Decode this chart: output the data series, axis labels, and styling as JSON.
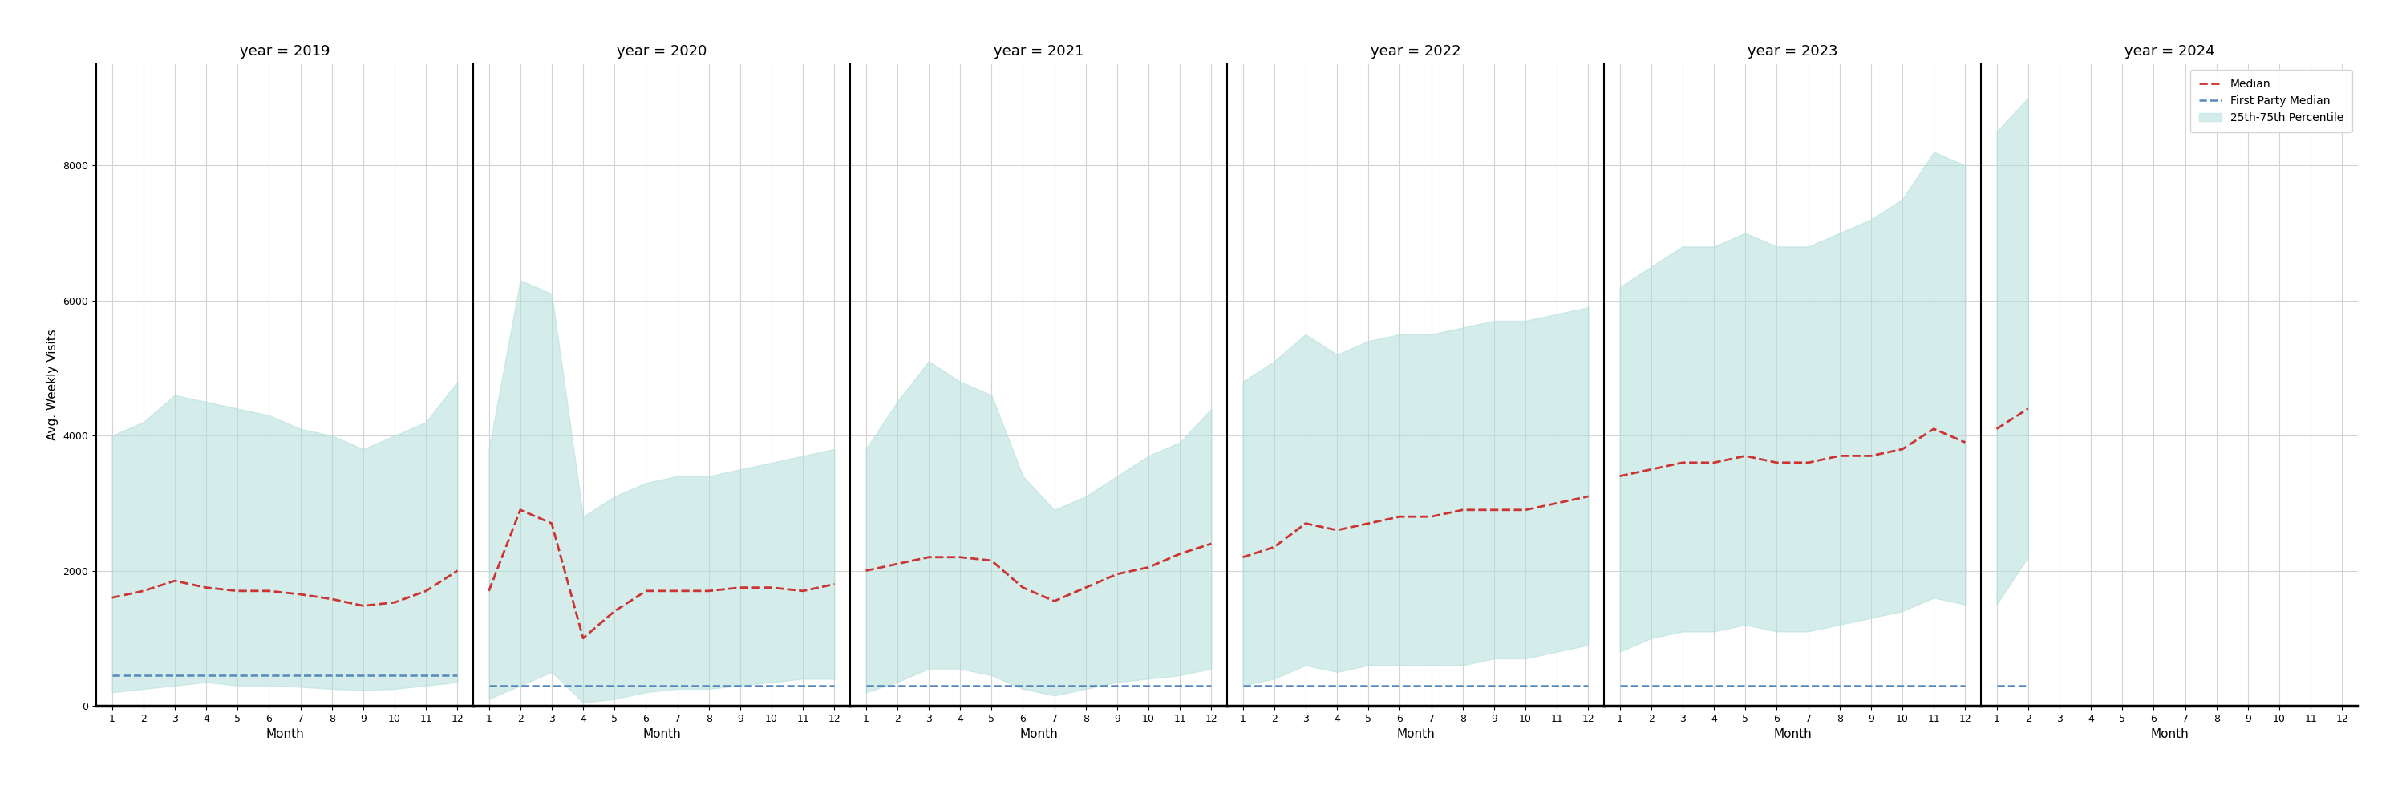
{
  "years": [
    2019,
    2020,
    2021,
    2022,
    2023,
    2024
  ],
  "ylabel": "Avg. Weekly Visits",
  "xlabel": "Month",
  "ylim": [
    0,
    9500
  ],
  "yticks": [
    0,
    2000,
    4000,
    6000,
    8000
  ],
  "median_color": "#cc3333",
  "fp_median_color": "#5588bb",
  "band_color": "#b2dfdb",
  "band_alpha": 0.55,
  "legend_labels": [
    "Median",
    "First Party Median",
    "25th-75th Percentile"
  ],
  "panel_widths": [
    12,
    12,
    12,
    12,
    12,
    12
  ],
  "data": {
    "2019": {
      "months": [
        1,
        2,
        3,
        4,
        5,
        6,
        7,
        8,
        9,
        10,
        11,
        12
      ],
      "median": [
        1600,
        1700,
        1850,
        1750,
        1700,
        1700,
        1650,
        1580,
        1480,
        1530,
        1700,
        2000
      ],
      "p25": [
        200,
        250,
        300,
        350,
        300,
        300,
        280,
        250,
        230,
        250,
        300,
        350
      ],
      "p75": [
        4000,
        4200,
        4600,
        4500,
        4400,
        4300,
        4100,
        4000,
        3800,
        4000,
        4200,
        4800
      ],
      "fp_median": [
        450,
        450,
        450,
        450,
        450,
        450,
        450,
        450,
        450,
        450,
        450,
        450
      ]
    },
    "2020": {
      "months": [
        1,
        2,
        3,
        4,
        5,
        6,
        7,
        8,
        9,
        10,
        11,
        12
      ],
      "median": [
        1700,
        2900,
        2700,
        1000,
        1400,
        1700,
        1700,
        1700,
        1750,
        1750,
        1700,
        1800
      ],
      "p25": [
        100,
        300,
        500,
        50,
        100,
        200,
        250,
        250,
        300,
        350,
        400,
        400
      ],
      "p75": [
        3800,
        6300,
        6100,
        2800,
        3100,
        3300,
        3400,
        3400,
        3500,
        3600,
        3700,
        3800
      ],
      "fp_median": [
        300,
        300,
        300,
        300,
        300,
        300,
        300,
        300,
        300,
        300,
        300,
        300
      ]
    },
    "2021": {
      "months": [
        1,
        2,
        3,
        4,
        5,
        6,
        7,
        8,
        9,
        10,
        11,
        12
      ],
      "median": [
        2000,
        2100,
        2200,
        2200,
        2150,
        1750,
        1550,
        1750,
        1950,
        2050,
        2250,
        2400
      ],
      "p25": [
        200,
        350,
        550,
        550,
        450,
        250,
        150,
        250,
        350,
        400,
        450,
        550
      ],
      "p75": [
        3800,
        4500,
        5100,
        4800,
        4600,
        3400,
        2900,
        3100,
        3400,
        3700,
        3900,
        4400
      ],
      "fp_median": [
        300,
        300,
        300,
        300,
        300,
        300,
        300,
        300,
        300,
        300,
        300,
        300
      ]
    },
    "2022": {
      "months": [
        1,
        2,
        3,
        4,
        5,
        6,
        7,
        8,
        9,
        10,
        11,
        12
      ],
      "median": [
        2200,
        2350,
        2700,
        2600,
        2700,
        2800,
        2800,
        2900,
        2900,
        2900,
        3000,
        3100
      ],
      "p25": [
        300,
        400,
        600,
        500,
        600,
        600,
        600,
        600,
        700,
        700,
        800,
        900
      ],
      "p75": [
        4800,
        5100,
        5500,
        5200,
        5400,
        5500,
        5500,
        5600,
        5700,
        5700,
        5800,
        5900
      ],
      "fp_median": [
        300,
        300,
        300,
        300,
        300,
        300,
        300,
        300,
        300,
        300,
        300,
        300
      ]
    },
    "2023": {
      "months": [
        1,
        2,
        3,
        4,
        5,
        6,
        7,
        8,
        9,
        10,
        11,
        12
      ],
      "median": [
        3400,
        3500,
        3600,
        3600,
        3700,
        3600,
        3600,
        3700,
        3700,
        3800,
        4100,
        3900
      ],
      "p25": [
        800,
        1000,
        1100,
        1100,
        1200,
        1100,
        1100,
        1200,
        1300,
        1400,
        1600,
        1500
      ],
      "p75": [
        6200,
        6500,
        6800,
        6800,
        7000,
        6800,
        6800,
        7000,
        7200,
        7500,
        8200,
        8000
      ],
      "fp_median": [
        300,
        300,
        300,
        300,
        300,
        300,
        300,
        300,
        300,
        300,
        300,
        300
      ]
    },
    "2024": {
      "months": [
        1,
        2
      ],
      "median": [
        4100,
        4400
      ],
      "p25": [
        1500,
        2200
      ],
      "p75": [
        8500,
        9000
      ],
      "fp_median": [
        300,
        300
      ]
    }
  }
}
